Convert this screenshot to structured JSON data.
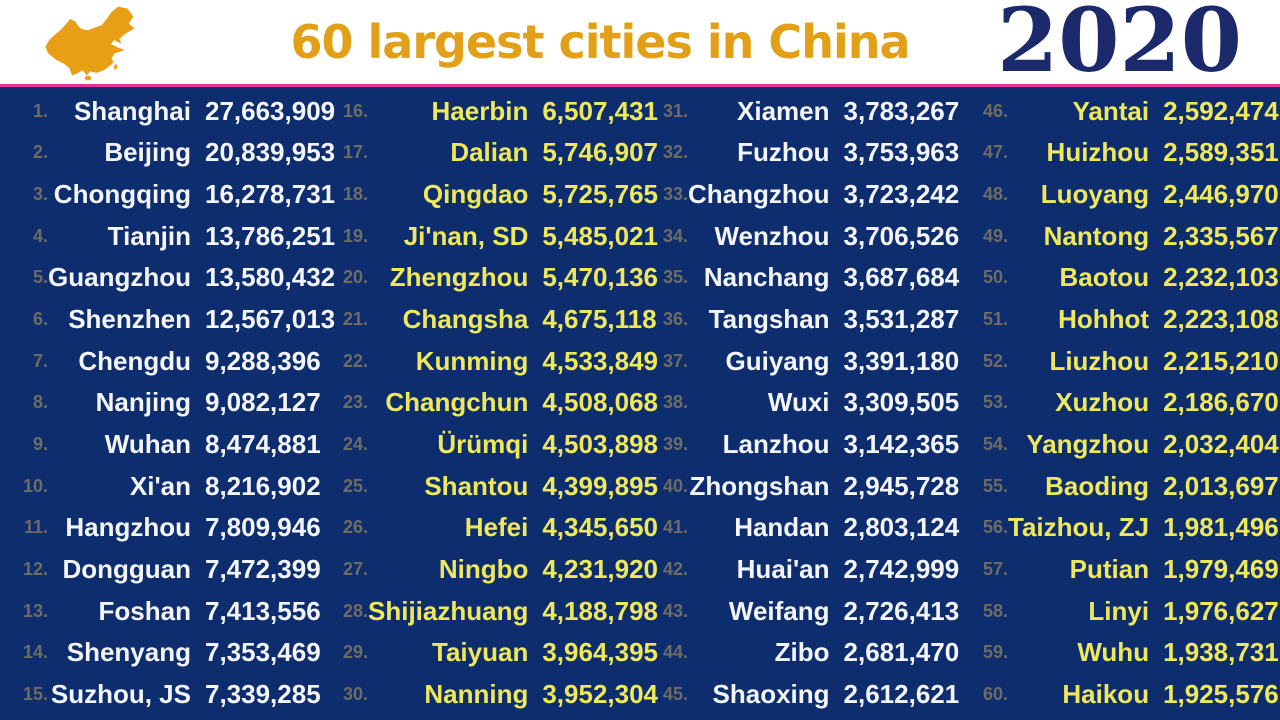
{
  "header": {
    "title": "60 largest cities in China",
    "year": "2020"
  },
  "colors": {
    "page_background": "#ffffff",
    "board_background": "#0d2d6e",
    "title": "#e2a018",
    "year": "#1c2a6b",
    "divider": "#e8309a",
    "rank": "#6f6d63",
    "column_text_white": "#f4f5f9",
    "column_text_yellow": "#efe85a",
    "map_icon": "#e99f15"
  },
  "chart_data": {
    "type": "table",
    "title": "60 largest cities in China",
    "year": "2020",
    "columns": [
      "rank",
      "city",
      "population"
    ],
    "format": {
      "rank_suffix": "."
    },
    "layout": {
      "columns_on_screen": 4,
      "rows_per_column": 15,
      "odd_columns_text": "white",
      "even_columns_text": "yellow"
    },
    "rows": [
      [
        1,
        "Shanghai",
        "27,663,909"
      ],
      [
        2,
        "Beijing",
        "20,839,953"
      ],
      [
        3,
        "Chongqing",
        "16,278,731"
      ],
      [
        4,
        "Tianjin",
        "13,786,251"
      ],
      [
        5,
        "Guangzhou",
        "13,580,432"
      ],
      [
        6,
        "Shenzhen",
        "12,567,013"
      ],
      [
        7,
        "Chengdu",
        "9,288,396"
      ],
      [
        8,
        "Nanjing",
        "9,082,127"
      ],
      [
        9,
        "Wuhan",
        "8,474,881"
      ],
      [
        10,
        "Xi'an",
        "8,216,902"
      ],
      [
        11,
        "Hangzhou",
        "7,809,946"
      ],
      [
        12,
        "Dongguan",
        "7,472,399"
      ],
      [
        13,
        "Foshan",
        "7,413,556"
      ],
      [
        14,
        "Shenyang",
        "7,353,469"
      ],
      [
        15,
        "Suzhou, JS",
        "7,339,285"
      ],
      [
        16,
        "Haerbin",
        "6,507,431"
      ],
      [
        17,
        "Dalian",
        "5,746,907"
      ],
      [
        18,
        "Qingdao",
        "5,725,765"
      ],
      [
        19,
        "Ji'nan, SD",
        "5,485,021"
      ],
      [
        20,
        "Zhengzhou",
        "5,470,136"
      ],
      [
        21,
        "Changsha",
        "4,675,118"
      ],
      [
        22,
        "Kunming",
        "4,533,849"
      ],
      [
        23,
        "Changchun",
        "4,508,068"
      ],
      [
        24,
        "Ürümqi",
        "4,503,898"
      ],
      [
        25,
        "Shantou",
        "4,399,895"
      ],
      [
        26,
        "Hefei",
        "4,345,650"
      ],
      [
        27,
        "Ningbo",
        "4,231,920"
      ],
      [
        28,
        "Shijiazhuang",
        "4,188,798"
      ],
      [
        29,
        "Taiyuan",
        "3,964,395"
      ],
      [
        30,
        "Nanning",
        "3,952,304"
      ],
      [
        31,
        "Xiamen",
        "3,783,267"
      ],
      [
        32,
        "Fuzhou",
        "3,753,963"
      ],
      [
        33,
        "Changzhou",
        "3,723,242"
      ],
      [
        34,
        "Wenzhou",
        "3,706,526"
      ],
      [
        35,
        "Nanchang",
        "3,687,684"
      ],
      [
        36,
        "Tangshan",
        "3,531,287"
      ],
      [
        37,
        "Guiyang",
        "3,391,180"
      ],
      [
        38,
        "Wuxi",
        "3,309,505"
      ],
      [
        39,
        "Lanzhou",
        "3,142,365"
      ],
      [
        40,
        "Zhongshan",
        "2,945,728"
      ],
      [
        41,
        "Handan",
        "2,803,124"
      ],
      [
        42,
        "Huai'an",
        "2,742,999"
      ],
      [
        43,
        "Weifang",
        "2,726,413"
      ],
      [
        44,
        "Zibo",
        "2,681,470"
      ],
      [
        45,
        "Shaoxing",
        "2,612,621"
      ],
      [
        46,
        "Yantai",
        "2,592,474"
      ],
      [
        47,
        "Huizhou",
        "2,589,351"
      ],
      [
        48,
        "Luoyang",
        "2,446,970"
      ],
      [
        49,
        "Nantong",
        "2,335,567"
      ],
      [
        50,
        "Baotou",
        "2,232,103"
      ],
      [
        51,
        "Hohhot",
        "2,223,108"
      ],
      [
        52,
        "Liuzhou",
        "2,215,210"
      ],
      [
        53,
        "Xuzhou",
        "2,186,670"
      ],
      [
        54,
        "Yangzhou",
        "2,032,404"
      ],
      [
        55,
        "Baoding",
        "2,013,697"
      ],
      [
        56,
        "Taizhou, ZJ",
        "1,981,496"
      ],
      [
        57,
        "Putian",
        "1,979,469"
      ],
      [
        58,
        "Linyi",
        "1,976,627"
      ],
      [
        59,
        "Wuhu",
        "1,938,731"
      ],
      [
        60,
        "Haikou",
        "1,925,576"
      ]
    ]
  }
}
